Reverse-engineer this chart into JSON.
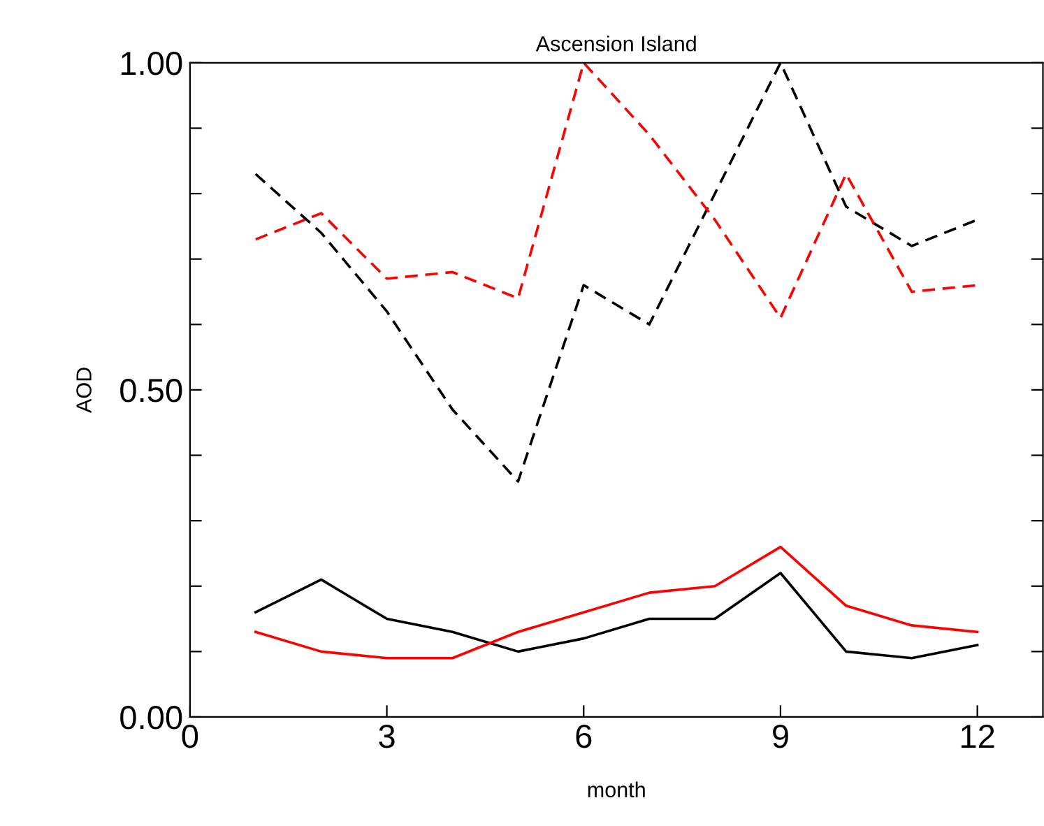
{
  "chart_data": {
    "type": "line",
    "title": "Ascension Island",
    "xlabel": "month",
    "ylabel": "AOD",
    "xlim": [
      0,
      13
    ],
    "ylim": [
      0,
      1
    ],
    "xticks": [
      0,
      3,
      6,
      9,
      12
    ],
    "yticks": [
      {
        "value": 0,
        "label": "0.00"
      },
      {
        "value": 0.1,
        "label": null
      },
      {
        "value": 0.2,
        "label": null
      },
      {
        "value": 0.3,
        "label": null
      },
      {
        "value": 0.4,
        "label": null
      },
      {
        "value": 0.5,
        "label": "0.50"
      },
      {
        "value": 0.6,
        "label": null
      },
      {
        "value": 0.7,
        "label": null
      },
      {
        "value": 0.8,
        "label": null
      },
      {
        "value": 0.9,
        "label": null
      },
      {
        "value": 1,
        "label": "1.00"
      }
    ],
    "x": [
      1,
      2,
      3,
      4,
      5,
      6,
      7,
      8,
      9,
      10,
      11,
      12
    ],
    "grid": false,
    "legend": false,
    "series": [
      {
        "color": "#000000",
        "line_style": "dashed",
        "values": [
          0.83,
          0.74,
          0.62,
          0.47,
          0.36,
          0.66,
          0.6,
          0.8,
          1.0,
          0.78,
          0.72,
          0.76
        ]
      },
      {
        "color": "#ff0000",
        "line_style": "dashed",
        "values": [
          0.73,
          0.77,
          0.67,
          0.68,
          0.64,
          1.0,
          0.89,
          0.76,
          0.61,
          0.83,
          0.65,
          0.66
        ]
      },
      {
        "color": "#000000",
        "line_style": "solid",
        "values": [
          0.16,
          0.21,
          0.15,
          0.13,
          0.1,
          0.12,
          0.15,
          0.15,
          0.22,
          0.1,
          0.09,
          0.11
        ]
      },
      {
        "color": "#ff0000",
        "line_style": "solid",
        "values": [
          0.13,
          0.1,
          0.09,
          0.09,
          0.13,
          0.16,
          0.19,
          0.2,
          0.26,
          0.17,
          0.14,
          0.13
        ]
      }
    ]
  }
}
